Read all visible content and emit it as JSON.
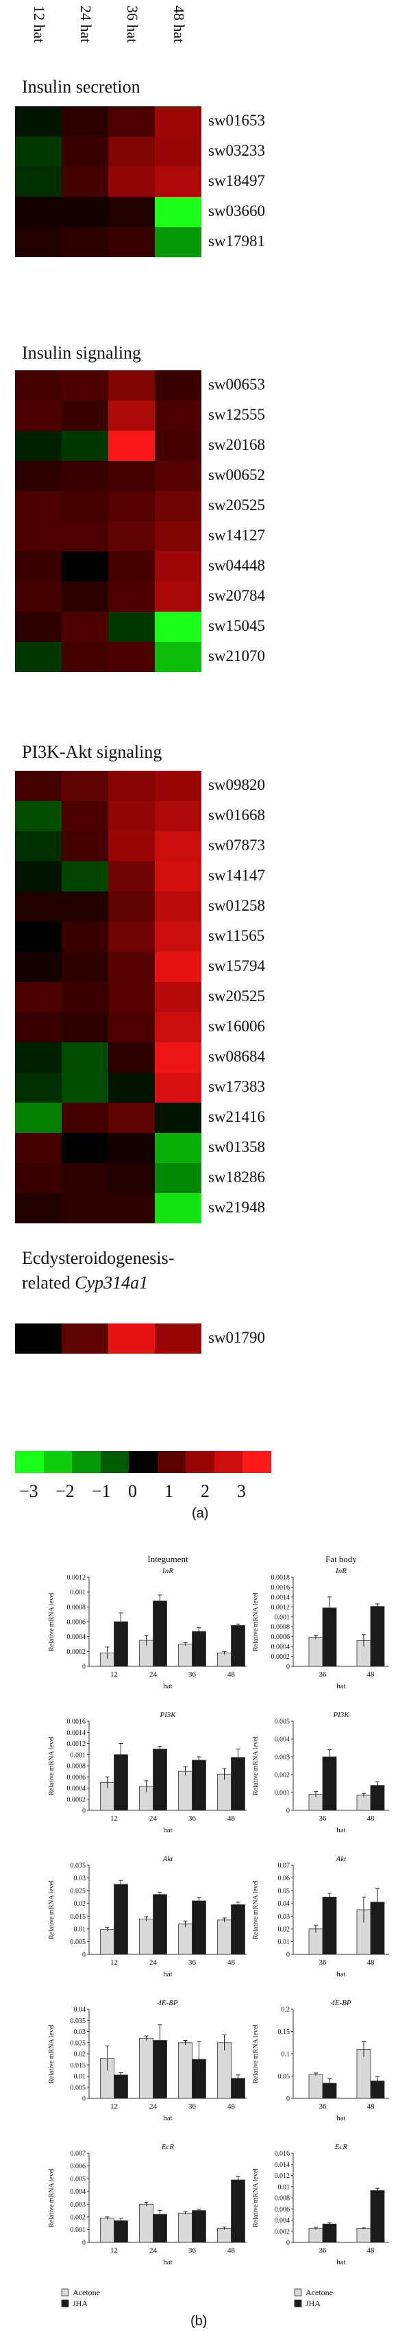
{
  "figure": {
    "panel_a_label": "(a)",
    "panel_b_label": "(b)"
  },
  "heatmap": {
    "columns": [
      "12 hat",
      "24 hat",
      "36 hat",
      "48 hat"
    ],
    "colorscale": {
      "ticks": [
        "−3",
        "−2",
        "−1",
        "0",
        "1",
        "2",
        "3"
      ],
      "colors": [
        "#22ff22",
        "#18c018",
        "#0e800e",
        "#000000",
        "#7a0000",
        "#c80000",
        "#ff2020"
      ]
    },
    "sections": [
      {
        "title": "Insulin secretion",
        "rows": [
          {
            "label": "sw01653",
            "values": [
              -0.1,
              0.3,
              0.6,
              1.6
            ]
          },
          {
            "label": "sw03233",
            "values": [
              -0.4,
              0.4,
              1.2,
              1.5
            ]
          },
          {
            "label": "sw18497",
            "values": [
              -0.3,
              0.5,
              1.4,
              1.8
            ]
          },
          {
            "label": "sw03660",
            "values": [
              0.1,
              0.1,
              0.2,
              -3.0
            ]
          },
          {
            "label": "sw17981",
            "values": [
              0.2,
              0.3,
              0.4,
              -1.5
            ]
          }
        ]
      },
      {
        "title": "Insulin signaling",
        "rows": [
          {
            "label": "sw00653",
            "values": [
              0.5,
              0.6,
              1.2,
              0.4
            ]
          },
          {
            "label": "sw12555",
            "values": [
              0.6,
              0.4,
              1.8,
              0.6
            ]
          },
          {
            "label": "sw20168",
            "values": [
              -0.2,
              -0.4,
              2.9,
              0.5
            ]
          },
          {
            "label": "sw00652",
            "values": [
              0.3,
              0.4,
              0.5,
              0.7
            ]
          },
          {
            "label": "sw20525",
            "values": [
              0.6,
              0.5,
              0.7,
              1.0
            ]
          },
          {
            "label": "sw14127",
            "values": [
              0.6,
              0.6,
              0.8,
              1.2
            ]
          },
          {
            "label": "sw04448",
            "values": [
              0.4,
              0.0,
              0.5,
              1.6
            ]
          },
          {
            "label": "sw20784",
            "values": [
              0.5,
              0.3,
              0.6,
              1.7
            ]
          },
          {
            "label": "sw15045",
            "values": [
              0.3,
              0.6,
              -0.4,
              -3.0
            ]
          },
          {
            "label": "sw21070",
            "values": [
              -0.4,
              0.5,
              0.6,
              -2.0
            ]
          }
        ]
      },
      {
        "title": "PI3K-Akt signaling",
        "rows": [
          {
            "label": "sw09820",
            "values": [
              0.5,
              0.8,
              1.3,
              1.5
            ]
          },
          {
            "label": "sw01668",
            "values": [
              -0.6,
              0.6,
              1.4,
              1.8
            ]
          },
          {
            "label": "sw07873",
            "values": [
              -0.3,
              0.5,
              1.5,
              2.2
            ]
          },
          {
            "label": "sw14147",
            "values": [
              -0.1,
              -0.5,
              1.0,
              2.3
            ]
          },
          {
            "label": "sw01258",
            "values": [
              0.2,
              0.2,
              0.8,
              2.0
            ]
          },
          {
            "label": "sw11565",
            "values": [
              0.0,
              0.4,
              1.0,
              2.2
            ]
          },
          {
            "label": "sw15794",
            "values": [
              0.1,
              0.3,
              0.7,
              2.6
            ]
          },
          {
            "label": "sw20525",
            "values": [
              0.6,
              0.4,
              0.7,
              1.9
            ]
          },
          {
            "label": "sw16006",
            "values": [
              0.4,
              0.3,
              0.6,
              2.2
            ]
          },
          {
            "label": "sw08684",
            "values": [
              -0.2,
              -0.6,
              0.3,
              2.7
            ]
          },
          {
            "label": "sw17383",
            "values": [
              -0.3,
              -0.6,
              -0.1,
              2.4
            ]
          },
          {
            "label": "sw21416",
            "values": [
              -1.2,
              0.5,
              0.8,
              -0.1
            ]
          },
          {
            "label": "sw01358",
            "values": [
              0.5,
              0.0,
              0.1,
              -1.8
            ]
          },
          {
            "label": "sw18286",
            "values": [
              0.4,
              0.3,
              0.2,
              -1.3
            ]
          },
          {
            "label": "sw21948",
            "values": [
              0.2,
              0.3,
              0.3,
              -2.6
            ]
          }
        ]
      },
      {
        "title_line1": "Ecdysteroidogenesis-",
        "title_line2_prefix": "related ",
        "title_line2_italic": "Cyp314a1",
        "rows": [
          {
            "label": "sw01790",
            "values": [
              0.0,
              0.8,
              2.6,
              1.5
            ]
          }
        ]
      }
    ]
  },
  "bars": {
    "legend": {
      "acetone": "Acetone",
      "jha": "JHA"
    },
    "ylabel": "Relative mRNA level",
    "xlabel": "hat",
    "column_titles": {
      "integument": "Integument",
      "fatbody": "Fat body"
    },
    "rows": [
      {
        "gene": "InR",
        "left": {
          "categories": [
            "12",
            "24",
            "36",
            "48"
          ],
          "yticks": [
            "0",
            "0.0002",
            "0.0004",
            "0.0006",
            "0.0008",
            "0.001",
            "0.0012"
          ],
          "ymax": 0.0012,
          "series": [
            {
              "name": "Acetone",
              "values": [
                0.00018,
                0.00035,
                0.0003,
                0.00018
              ],
              "errors": [
                8e-05,
                7e-05,
                2e-05,
                2e-05
              ]
            },
            {
              "name": "JHA",
              "values": [
                0.0006,
                0.00088,
                0.00047,
                0.00055
              ],
              "errors": [
                0.00012,
                8e-05,
                5e-05,
                2e-05
              ]
            }
          ]
        },
        "right": {
          "categories": [
            "36",
            "48"
          ],
          "yticks": [
            "0",
            "0.0002",
            "0.0004",
            "0.0006",
            "0.0008",
            "0.001",
            "0.0012",
            "0.0014",
            "0.0016",
            "0.0018"
          ],
          "ymax": 0.0018,
          "series": [
            {
              "name": "Acetone",
              "values": [
                0.00059,
                0.00052
              ],
              "errors": [
                4e-05,
                0.00012
              ]
            },
            {
              "name": "JHA",
              "values": [
                0.00118,
                0.00121
              ],
              "errors": [
                0.00022,
                5e-05
              ]
            }
          ]
        }
      },
      {
        "gene": "PI3K",
        "left": {
          "categories": [
            "12",
            "24",
            "36",
            "48"
          ],
          "yticks": [
            "0",
            "0.0002",
            "0.0004",
            "0.0006",
            "0.0008",
            "0.001",
            "0.0012",
            "0.0014",
            "0.0016"
          ],
          "ymax": 0.0016,
          "series": [
            {
              "name": "Acetone",
              "values": [
                0.0005,
                0.00043,
                0.0007,
                0.00065
              ],
              "errors": [
                0.0001,
                0.0001,
                8e-05,
                0.0001
              ]
            },
            {
              "name": "JHA",
              "values": [
                0.001,
                0.0011,
                0.0009,
                0.00095
              ],
              "errors": [
                0.0002,
                5e-05,
                6e-05,
                0.00015
              ]
            }
          ]
        },
        "right": {
          "categories": [
            "36",
            "48"
          ],
          "yticks": [
            "0",
            "0.001",
            "0.002",
            "0.003",
            "0.004",
            "0.005"
          ],
          "ymax": 0.005,
          "series": [
            {
              "name": "Acetone",
              "values": [
                0.0009,
                0.00085
              ],
              "errors": [
                0.00015,
                0.0001
              ]
            },
            {
              "name": "JHA",
              "values": [
                0.003,
                0.0014
              ],
              "errors": [
                0.0004,
                0.0002
              ]
            }
          ]
        }
      },
      {
        "gene": "Akt",
        "left": {
          "categories": [
            "12",
            "24",
            "36",
            "48"
          ],
          "yticks": [
            "0",
            "0.005",
            "0.01",
            "0.015",
            "0.02",
            "0.025",
            "0.03",
            "0.035"
          ],
          "ymax": 0.035,
          "series": [
            {
              "name": "Acetone",
              "values": [
                0.0098,
                0.0139,
                0.0119,
                0.0135
              ],
              "errors": [
                0.0008,
                0.0009,
                0.0012,
                0.0008
              ]
            },
            {
              "name": "JHA",
              "values": [
                0.0275,
                0.0235,
                0.021,
                0.0195
              ],
              "errors": [
                0.0015,
                0.0008,
                0.0012,
                0.001
              ]
            }
          ]
        },
        "right": {
          "categories": [
            "36",
            "48"
          ],
          "yticks": [
            "0",
            "0.01",
            "0.02",
            "0.03",
            "0.04",
            "0.05",
            "0.06",
            "0.07"
          ],
          "ymax": 0.07,
          "series": [
            {
              "name": "Acetone",
              "values": [
                0.02,
                0.035
              ],
              "errors": [
                0.003,
                0.01
              ]
            },
            {
              "name": "JHA",
              "values": [
                0.045,
                0.041
              ],
              "errors": [
                0.003,
                0.011
              ]
            }
          ]
        }
      },
      {
        "gene": "4E-BP",
        "left": {
          "categories": [
            "12",
            "24",
            "36",
            "48"
          ],
          "yticks": [
            "0",
            "0.005",
            "0.01",
            "0.015",
            "0.02",
            "0.025",
            "0.03",
            "0.035",
            "0.04"
          ],
          "ymax": 0.04,
          "series": [
            {
              "name": "Acetone",
              "values": [
                0.018,
                0.027,
                0.025,
                0.025
              ],
              "errors": [
                0.0055,
                0.001,
                0.001,
                0.0035
              ]
            },
            {
              "name": "JHA",
              "values": [
                0.0105,
                0.026,
                0.0175,
                0.009
              ],
              "errors": [
                0.001,
                0.007,
                0.008,
                0.0015
              ]
            }
          ]
        },
        "right": {
          "categories": [
            "36",
            "48"
          ],
          "yticks": [
            "0",
            "0.05",
            "0.1",
            "0.15",
            "0.2"
          ],
          "ymax": 0.2,
          "series": [
            {
              "name": "Acetone",
              "values": [
                0.054,
                0.11
              ],
              "errors": [
                0.003,
                0.017
              ]
            },
            {
              "name": "JHA",
              "values": [
                0.034,
                0.039
              ],
              "errors": [
                0.01,
                0.01
              ]
            }
          ]
        }
      },
      {
        "gene": "EcR",
        "left": {
          "categories": [
            "12",
            "24",
            "36",
            "48"
          ],
          "yticks": [
            "0",
            "0.001",
            "0.002",
            "0.003",
            "0.004",
            "0.005",
            "0.006",
            "0.007"
          ],
          "ymax": 0.007,
          "series": [
            {
              "name": "Acetone",
              "values": [
                0.0019,
                0.003,
                0.0023,
                0.0011
              ],
              "errors": [
                0.0001,
                0.00015,
                0.0001,
                0.0001
              ]
            },
            {
              "name": "JHA",
              "values": [
                0.0017,
                0.0022,
                0.0025,
                0.0049
              ],
              "errors": [
                0.0002,
                0.0003,
                0.0001,
                0.0003
              ]
            }
          ]
        },
        "right": {
          "categories": [
            "36",
            "48"
          ],
          "yticks": [
            "0",
            "0.002",
            "0.004",
            "0.006",
            "0.008",
            "0.01",
            "0.012",
            "0.014",
            "0.016"
          ],
          "ymax": 0.016,
          "series": [
            {
              "name": "Acetone",
              "values": [
                0.0025,
                0.0025
              ],
              "errors": [
                0.0002,
                0.0001
              ]
            },
            {
              "name": "JHA",
              "values": [
                0.0033,
                0.0093
              ],
              "errors": [
                0.0002,
                0.0004
              ]
            }
          ]
        }
      }
    ]
  },
  "chart_data": [
    {
      "type": "heatmap",
      "title": "Insulin secretion",
      "columns": [
        "12 hat",
        "24 hat",
        "36 hat",
        "48 hat"
      ],
      "rows": [
        "sw01653",
        "sw03233",
        "sw18497",
        "sw03660",
        "sw17981"
      ],
      "colorscale": [
        -3,
        3
      ]
    },
    {
      "type": "heatmap",
      "title": "Insulin signaling",
      "columns": [
        "12 hat",
        "24 hat",
        "36 hat",
        "48 hat"
      ],
      "rows": [
        "sw00653",
        "sw12555",
        "sw20168",
        "sw00652",
        "sw20525",
        "sw14127",
        "sw04448",
        "sw20784",
        "sw15045",
        "sw21070"
      ],
      "colorscale": [
        -3,
        3
      ]
    },
    {
      "type": "heatmap",
      "title": "PI3K-Akt signaling",
      "columns": [
        "12 hat",
        "24 hat",
        "36 hat",
        "48 hat"
      ],
      "rows": [
        "sw09820",
        "sw01668",
        "sw07873",
        "sw14147",
        "sw01258",
        "sw11565",
        "sw15794",
        "sw20525",
        "sw16006",
        "sw08684",
        "sw17383",
        "sw21416",
        "sw01358",
        "sw18286",
        "sw21948"
      ],
      "colorscale": [
        -3,
        3
      ]
    },
    {
      "type": "heatmap",
      "title": "Ecdysteroidogenesis-related Cyp314a1",
      "columns": [
        "12 hat",
        "24 hat",
        "36 hat",
        "48 hat"
      ],
      "rows": [
        "sw01790"
      ],
      "colorscale": [
        -3,
        3
      ]
    },
    {
      "type": "bar",
      "description_source": "bars.rows",
      "ylabel": "Relative mRNA level",
      "xlabel": "hat",
      "legend": [
        "Acetone",
        "JHA"
      ]
    }
  ]
}
